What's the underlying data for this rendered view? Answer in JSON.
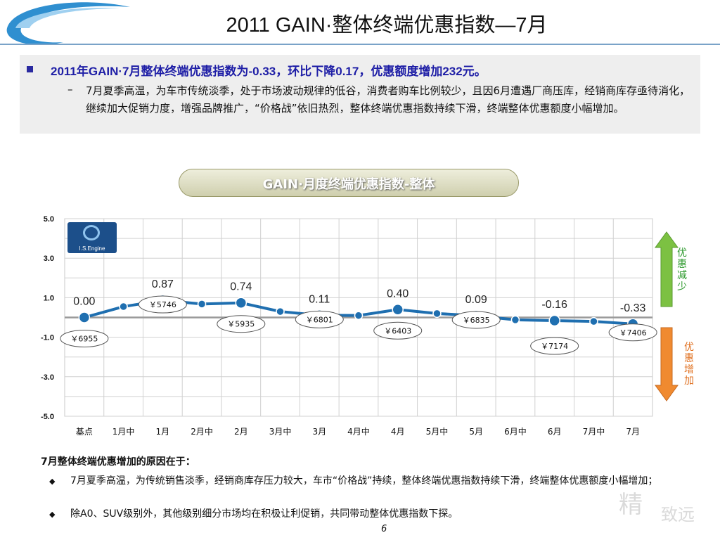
{
  "slide": {
    "title": "2011 GAIN·整体终端优惠指数—7月",
    "summary_headline": "2011年GAIN·7月整体终端优惠指数为-0.33，环比下降0.17，优惠额度增加232元。",
    "summary_dash": "–",
    "summary_detail": "7月夏季高温，为车市传统淡季，处于市场波动规律的低谷，消费者购车比例较少，且因6月遭遇厂商压库，经销商库存亟待消化，继续加大促销力度，增强品牌推广，“价格战”依旧热烈，整体终端优惠指数持续下滑，终端整体优惠额度小幅增加。",
    "banner": "GAIN·月度终端优惠指数-整体",
    "logo_text": "I.S.Engine",
    "side_up": "优惠减少",
    "side_down": "优惠增加",
    "reason_title": "7月整体终端优惠增加的原因在于：",
    "reasons": [
      "7月夏季高温，为传统销售淡季，经销商库存压力较大，车市“价格战”持续，整体终端优惠指数持续下滑，终端整体优惠额度小幅增加；",
      "除A0、SUV级别外，其他级别细分市场均在积极让利促销，共同带动整体优惠指数下探。"
    ],
    "bullet_glyph": "◆",
    "page_number": "6",
    "watermark": "精",
    "watermark2": "致远"
  },
  "colors": {
    "line": "#1f6fb0",
    "up_arrow": "#7cc142",
    "down_arrow": "#f08a30",
    "up_text": "#2e9a2e",
    "down_text": "#e07020",
    "accent": "#1e1ea6"
  },
  "chart_data": {
    "type": "line",
    "categories": [
      "基点",
      "1月中",
      "1月",
      "2月中",
      "2月",
      "3月中",
      "3月",
      "4月中",
      "4月",
      "5月中",
      "5月",
      "6月中",
      "6月",
      "7月中",
      "7月"
    ],
    "values": [
      0.0,
      0.55,
      0.87,
      0.68,
      0.74,
      0.3,
      0.11,
      0.1,
      0.4,
      0.2,
      0.09,
      -0.12,
      -0.16,
      -0.2,
      -0.33
    ],
    "y_tick_labels": [
      "5.0",
      "3.0",
      "1.0",
      "-1.0",
      "-3.0",
      "-5.0"
    ],
    "y_ticks": [
      5,
      3,
      1,
      -1,
      -3,
      -5
    ],
    "ylim": [
      -5,
      5
    ],
    "grid": true,
    "value_labels": [
      {
        "index": 0,
        "text": "0.00"
      },
      {
        "index": 2,
        "text": "0.87"
      },
      {
        "index": 4,
        "text": "0.74"
      },
      {
        "index": 6,
        "text": "0.11"
      },
      {
        "index": 8,
        "text": "0.40"
      },
      {
        "index": 10,
        "text": "0.09"
      },
      {
        "index": 12,
        "text": "-0.16"
      },
      {
        "index": 14,
        "text": "-0.33"
      }
    ],
    "amount_labels": [
      {
        "index": 0,
        "text": "￥6955"
      },
      {
        "index": 2,
        "text": "￥5746"
      },
      {
        "index": 4,
        "text": "￥5935"
      },
      {
        "index": 6,
        "text": "￥6801"
      },
      {
        "index": 8,
        "text": "￥6403"
      },
      {
        "index": 10,
        "text": "￥6835"
      },
      {
        "index": 12,
        "text": "￥7174"
      },
      {
        "index": 14,
        "text": "￥7406"
      }
    ]
  }
}
